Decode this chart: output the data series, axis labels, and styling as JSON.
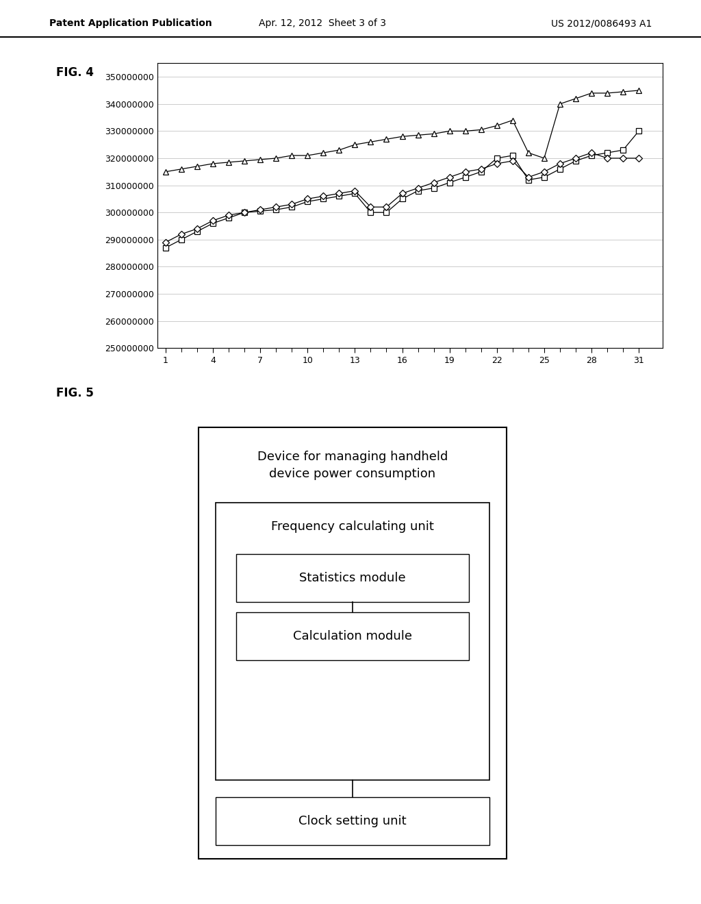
{
  "header_left": "Patent Application Publication",
  "header_center": "Apr. 12, 2012  Sheet 3 of 3",
  "header_right": "US 2012/0086493 A1",
  "fig4_label": "FIG. 4",
  "fig5_label": "FIG. 5",
  "ylim": [
    250000000,
    355000000
  ],
  "yticks": [
    250000000,
    260000000,
    270000000,
    280000000,
    290000000,
    300000000,
    310000000,
    320000000,
    330000000,
    340000000,
    350000000
  ],
  "xticks": [
    1,
    4,
    7,
    10,
    13,
    16,
    19,
    22,
    25,
    28,
    31
  ],
  "xlim": [
    0.5,
    32.5
  ],
  "triangle_x": [
    1,
    2,
    3,
    4,
    5,
    6,
    7,
    8,
    9,
    10,
    11,
    12,
    13,
    14,
    15,
    16,
    17,
    18,
    19,
    20,
    21,
    22,
    23,
    24,
    25,
    26,
    27,
    28,
    29,
    30,
    31
  ],
  "triangle_y": [
    315000000,
    316000000,
    317000000,
    318000000,
    318500000,
    319000000,
    319500000,
    320000000,
    321000000,
    321000000,
    322000000,
    323000000,
    325000000,
    326000000,
    327000000,
    328000000,
    328500000,
    329000000,
    330000000,
    330000000,
    330500000,
    332000000,
    334000000,
    322000000,
    320000000,
    340000000,
    342000000,
    344000000,
    344000000,
    344500000,
    345000000
  ],
  "square_x": [
    1,
    2,
    3,
    4,
    5,
    6,
    7,
    8,
    9,
    10,
    11,
    12,
    13,
    14,
    15,
    16,
    17,
    18,
    19,
    20,
    21,
    22,
    23,
    24,
    25,
    26,
    27,
    28,
    29,
    30,
    31
  ],
  "square_y": [
    287000000,
    290000000,
    293000000,
    296000000,
    298000000,
    300000000,
    300500000,
    301000000,
    302000000,
    304000000,
    305000000,
    306000000,
    307000000,
    300000000,
    300000000,
    305000000,
    308000000,
    309000000,
    311000000,
    313000000,
    315000000,
    320000000,
    321000000,
    312000000,
    313000000,
    316000000,
    319000000,
    321000000,
    322000000,
    323000000,
    330000000
  ],
  "diamond_x": [
    1,
    2,
    3,
    4,
    5,
    6,
    7,
    8,
    9,
    10,
    11,
    12,
    13,
    14,
    15,
    16,
    17,
    18,
    19,
    20,
    21,
    22,
    23,
    24,
    25,
    26,
    27,
    28,
    29,
    30,
    31
  ],
  "diamond_y": [
    289000000,
    292000000,
    294000000,
    297000000,
    299000000,
    300000000,
    301000000,
    302000000,
    303000000,
    305000000,
    306000000,
    307000000,
    308000000,
    302000000,
    302000000,
    307000000,
    309000000,
    311000000,
    313000000,
    315000000,
    316000000,
    318000000,
    319000000,
    313000000,
    315000000,
    318000000,
    320000000,
    322000000,
    320000000,
    320000000,
    320000000
  ],
  "bg_color": "#ffffff",
  "fig5_title": "Device for managing handheld\ndevice power consumption",
  "fig5_freq_label": "Frequency calculating unit",
  "fig5_stats_label": "Statistics module",
  "fig5_calc_label": "Calculation module",
  "fig5_clock_label": "Clock setting unit"
}
